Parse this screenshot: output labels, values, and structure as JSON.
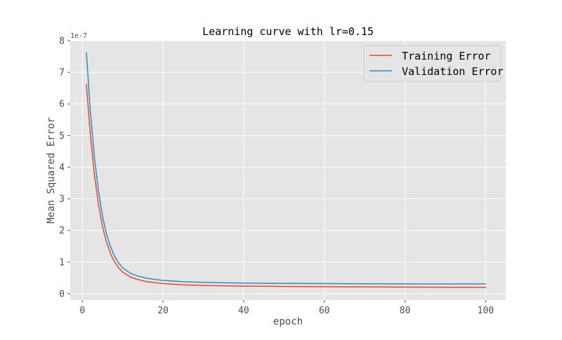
{
  "chart_data": {
    "type": "line",
    "title": "Learning curve with lr=0.15",
    "xlabel": "epoch",
    "ylabel": "Mean Squared Error",
    "y_offset_label": "1e-7",
    "y_scale_factor": 1e-07,
    "xlim": [
      -3,
      105
    ],
    "ylim": [
      -0.2,
      8.0
    ],
    "xticks": [
      0,
      20,
      40,
      60,
      80,
      100
    ],
    "xtick_labels": [
      "0",
      "20",
      "40",
      "60",
      "80",
      "100"
    ],
    "yticks": [
      0,
      1,
      2,
      3,
      4,
      5,
      6,
      7,
      8
    ],
    "ytick_labels": [
      "0",
      "1",
      "2",
      "3",
      "4",
      "5",
      "6",
      "7",
      "8"
    ],
    "grid": true,
    "style": "ggplot",
    "legend_position": "upper right",
    "x": [
      1,
      2,
      3,
      4,
      5,
      6,
      7,
      8,
      9,
      10,
      12,
      14,
      16,
      18,
      20,
      25,
      30,
      35,
      40,
      50,
      60,
      70,
      80,
      90,
      100
    ],
    "series": [
      {
        "name": "Training Error",
        "color": "#E24A33",
        "values": [
          6.62,
          5.0,
          3.75,
          2.82,
          2.12,
          1.62,
          1.26,
          1.0,
          0.82,
          0.68,
          0.52,
          0.44,
          0.38,
          0.35,
          0.32,
          0.28,
          0.26,
          0.25,
          0.24,
          0.23,
          0.22,
          0.215,
          0.21,
          0.205,
          0.2
        ]
      },
      {
        "name": "Validation Error",
        "color": "#348ABD",
        "values": [
          7.62,
          5.75,
          4.3,
          3.25,
          2.45,
          1.88,
          1.48,
          1.18,
          0.97,
          0.82,
          0.64,
          0.55,
          0.49,
          0.45,
          0.42,
          0.38,
          0.36,
          0.345,
          0.335,
          0.325,
          0.32,
          0.315,
          0.31,
          0.31,
          0.31
        ]
      }
    ]
  }
}
